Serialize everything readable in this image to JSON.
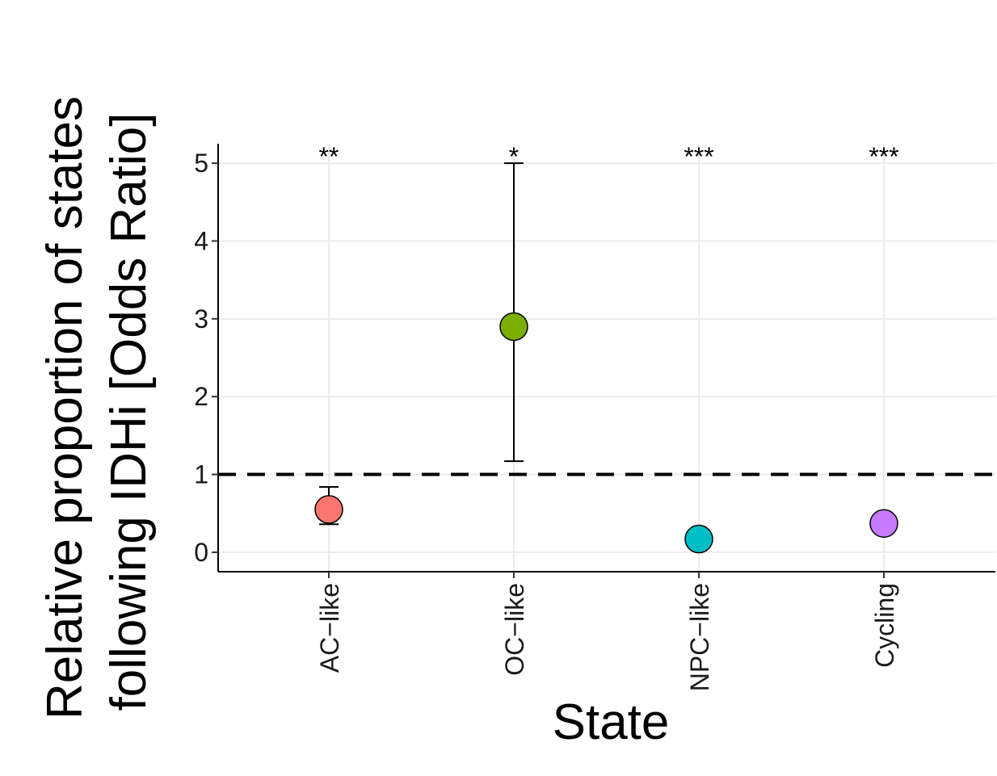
{
  "chart_data": {
    "type": "scatter",
    "xlabel": "State",
    "ylabel_lines": [
      "Relative proportion of states",
      "following IDHi [Odds Ratio]"
    ],
    "categories": [
      "AC−like",
      "OC−like",
      "NPC−like",
      "Cycling"
    ],
    "points": [
      {
        "category": "AC−like",
        "y": 0.55,
        "lower": 0.36,
        "upper": 0.84,
        "significance": "**",
        "color": "#F8766D"
      },
      {
        "category": "OC−like",
        "y": 2.9,
        "lower": 1.17,
        "upper": 5.0,
        "significance": "*",
        "color": "#7CAE00"
      },
      {
        "category": "NPC−like",
        "y": 0.17,
        "lower": 0.1,
        "upper": 0.25,
        "significance": "***",
        "color": "#00BFC4"
      },
      {
        "category": "Cycling",
        "y": 0.37,
        "lower": 0.3,
        "upper": 0.46,
        "significance": "***",
        "color": "#C77CFF"
      }
    ],
    "yticks": [
      0,
      1,
      2,
      3,
      4,
      5
    ],
    "ylim": [
      -0.25,
      5.25
    ],
    "reference_line": {
      "y": 1,
      "style": "dashed"
    },
    "grid": true,
    "legend": "none"
  }
}
